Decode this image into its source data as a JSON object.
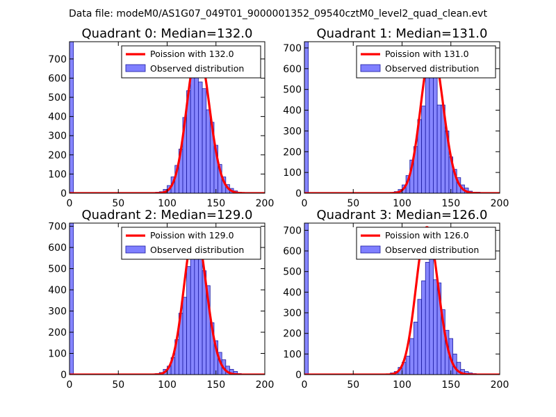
{
  "suptitle": "Data file: modeM0/AS1G07_049T01_9000001352_09540cztM0_level2_quad_clean.evt",
  "chart_data": [
    {
      "type": "bar",
      "title": "Quadrant 0: Median=132.0",
      "median": 132.0,
      "xlim": [
        0,
        200
      ],
      "ylim": [
        0,
        790
      ],
      "xticks": [
        "0",
        "50",
        "100",
        "150",
        "200"
      ],
      "yticks": [
        "0",
        "100",
        "200",
        "300",
        "400",
        "500",
        "600",
        "700"
      ],
      "bin_width": 4,
      "histogram": {
        "bin_starts": [
          0,
          84,
          88,
          92,
          96,
          100,
          104,
          108,
          112,
          116,
          120,
          124,
          128,
          132,
          136,
          140,
          144,
          148,
          152,
          156,
          160,
          164,
          168,
          172
        ],
        "counts": [
          790,
          2,
          5,
          8,
          20,
          40,
          85,
          145,
          230,
          395,
          535,
          695,
          640,
          580,
          545,
          435,
          370,
          250,
          150,
          85,
          45,
          25,
          12,
          5
        ],
        "color": "#7f7fff"
      },
      "poisson": {
        "mean": 132.0,
        "peak": 755,
        "sigma": 9.8,
        "color": "#ff0000"
      },
      "legend": {
        "entries": [
          "Poission with 132.0",
          "Observed distribution"
        ],
        "location": "upper right"
      }
    },
    {
      "type": "bar",
      "title": "Quadrant 1: Median=131.0",
      "median": 131.0,
      "xlim": [
        0,
        200
      ],
      "ylim": [
        0,
        730
      ],
      "xticks": [
        "0",
        "50",
        "100",
        "150",
        "200"
      ],
      "yticks": [
        "0",
        "100",
        "200",
        "300",
        "400",
        "500",
        "600",
        "700"
      ],
      "bin_width": 4,
      "histogram": {
        "bin_starts": [
          0,
          88,
          92,
          96,
          100,
          104,
          108,
          112,
          116,
          120,
          124,
          128,
          132,
          136,
          140,
          144,
          148,
          152,
          156,
          160,
          164,
          168,
          172,
          176,
          180,
          184
        ],
        "counts": [
          730,
          2,
          8,
          18,
          40,
          85,
          160,
          225,
          355,
          420,
          560,
          665,
          575,
          425,
          425,
          300,
          175,
          115,
          75,
          40,
          25,
          10,
          5,
          5,
          2,
          2
        ],
        "color": "#7f7fff"
      },
      "poisson": {
        "mean": 131.0,
        "peak": 700,
        "sigma": 9.8,
        "color": "#ff0000"
      },
      "legend": {
        "entries": [
          "Poission with 131.0",
          "Observed distribution"
        ],
        "location": "upper right"
      }
    },
    {
      "type": "bar",
      "title": "Quadrant 2: Median=129.0",
      "median": 129.0,
      "xlim": [
        0,
        200
      ],
      "ylim": [
        0,
        715
      ],
      "xticks": [
        "0",
        "50",
        "100",
        "150",
        "200"
      ],
      "yticks": [
        "0",
        "100",
        "200",
        "300",
        "400",
        "500",
        "600",
        "700"
      ],
      "bin_width": 4,
      "histogram": {
        "bin_starts": [
          0,
          84,
          88,
          92,
          96,
          100,
          104,
          108,
          112,
          116,
          120,
          124,
          128,
          132,
          136,
          140,
          144,
          148,
          152,
          156,
          160,
          164,
          168,
          172
        ],
        "counts": [
          715,
          3,
          5,
          10,
          25,
          40,
          80,
          165,
          290,
          365,
          510,
          555,
          600,
          650,
          490,
          420,
          245,
          160,
          105,
          70,
          40,
          25,
          15,
          5
        ],
        "color": "#7f7fff"
      },
      "poisson": {
        "mean": 129.0,
        "peak": 690,
        "sigma": 9.7,
        "color": "#ff0000"
      },
      "legend": {
        "entries": [
          "Poission with 129.0",
          "Observed distribution"
        ],
        "location": "upper right"
      }
    },
    {
      "type": "bar",
      "title": "Quadrant 3: Median=126.0",
      "median": 126.0,
      "xlim": [
        0,
        200
      ],
      "ylim": [
        0,
        735
      ],
      "xticks": [
        "0",
        "50",
        "100",
        "150",
        "200"
      ],
      "yticks": [
        "0",
        "100",
        "200",
        "300",
        "400",
        "500",
        "600",
        "700"
      ],
      "bin_width": 4,
      "histogram": {
        "bin_starts": [
          0,
          56,
          68,
          88,
          92,
          96,
          100,
          104,
          108,
          112,
          116,
          120,
          124,
          128,
          132,
          136,
          140,
          144,
          148,
          152,
          156,
          160,
          164,
          168,
          172,
          176
        ],
        "counts": [
          735,
          2,
          3,
          8,
          15,
          35,
          60,
          90,
          175,
          255,
          365,
          455,
          545,
          605,
          460,
          445,
          315,
          215,
          175,
          100,
          60,
          25,
          15,
          8,
          5,
          2
        ],
        "color": "#7f7fff"
      },
      "poisson": {
        "mean": 126.0,
        "peak": 715,
        "sigma": 9.5,
        "color": "#ff0000"
      },
      "legend": {
        "entries": [
          "Poission with 126.0",
          "Observed distribution"
        ],
        "location": "upper right"
      }
    }
  ]
}
